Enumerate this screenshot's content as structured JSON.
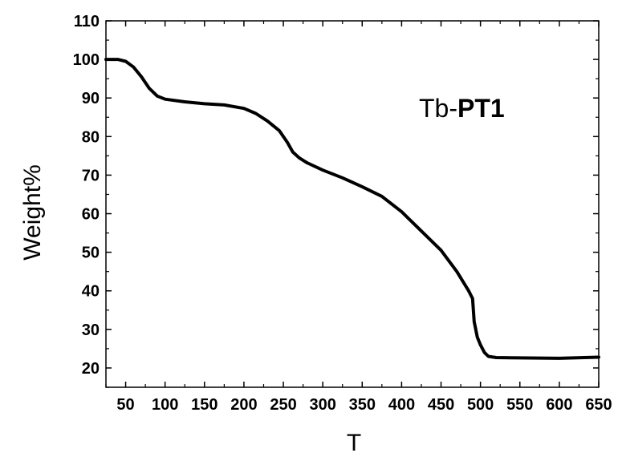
{
  "chart_data": {
    "type": "line",
    "title": "",
    "xlabel": "T",
    "ylabel": "Weight%",
    "xlim": [
      25,
      650
    ],
    "ylim": [
      15,
      110
    ],
    "xticks": [
      50,
      100,
      150,
      200,
      250,
      300,
      350,
      400,
      450,
      500,
      550,
      600,
      650
    ],
    "yticks": [
      20,
      30,
      40,
      50,
      60,
      70,
      80,
      90,
      100,
      110
    ],
    "annotation": {
      "prefix": "Tb-",
      "bold": "PT1"
    },
    "grid": false,
    "series": [
      {
        "color": "#000000",
        "x": [
          25,
          40,
          50,
          60,
          70,
          80,
          90,
          100,
          125,
          150,
          175,
          200,
          215,
          230,
          245,
          255,
          262,
          270,
          280,
          300,
          325,
          350,
          375,
          400,
          425,
          450,
          470,
          485,
          490,
          492,
          496,
          500,
          505,
          510,
          520,
          550,
          600,
          650
        ],
        "y": [
          100,
          100,
          99.5,
          98,
          95.5,
          92.5,
          90.5,
          89.7,
          89,
          88.5,
          88.2,
          87.3,
          86,
          84,
          81.5,
          78.5,
          76,
          74.5,
          73.2,
          71.3,
          69.3,
          67,
          64.5,
          60.5,
          55.5,
          50.5,
          45,
          40,
          38,
          32,
          28,
          26,
          24,
          23,
          22.7,
          22.6,
          22.5,
          22.8
        ]
      }
    ]
  }
}
